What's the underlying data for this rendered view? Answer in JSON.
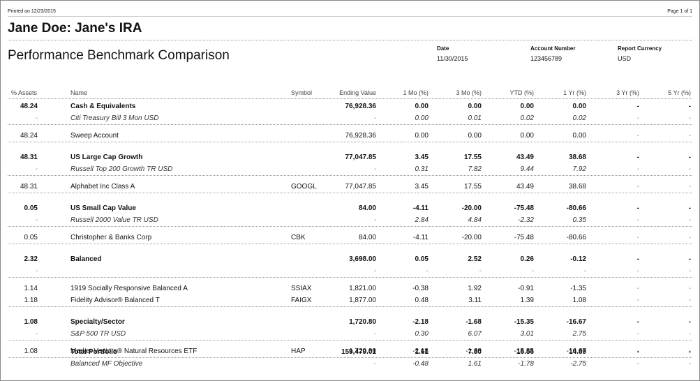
{
  "header": {
    "printed": "Printed on 12/23/2015",
    "page": "Page 1 of 1",
    "title": "Jane Doe: Jane's IRA",
    "subtitle": "Performance Benchmark Comparison",
    "fields": [
      {
        "label": "Date",
        "value": "11/30/2015"
      },
      {
        "label": "Account Number",
        "value": "123456789"
      },
      {
        "label": "Report Currency",
        "value": "USD"
      }
    ]
  },
  "table": {
    "columns": [
      "% Assets",
      "Name",
      "Symbol",
      "Ending Value",
      "1 Mo (%)",
      "3 Mo (%)",
      "YTD (%)",
      "1 Yr (%)",
      "3 Yr (%)",
      "5 Yr (%)"
    ],
    "groups": [
      {
        "summary": [
          "48.24",
          "Cash & Equivalents",
          null,
          "76,928.36",
          "0.00",
          "0.00",
          "0.00",
          "0.00",
          "-",
          "-"
        ],
        "benchmark": [
          "-",
          "Citi Treasury Bill 3 Mon USD",
          null,
          "-",
          "0.00",
          "0.01",
          "0.02",
          "0.02",
          "-",
          "-"
        ],
        "holdings": [
          [
            "48.24",
            "Sweep Account",
            null,
            "76,928.36",
            "0.00",
            "0.00",
            "0.00",
            "0.00",
            "-",
            "-"
          ]
        ]
      },
      {
        "summary": [
          "48.31",
          "US Large Cap Growth",
          null,
          "77,047.85",
          "3.45",
          "17.55",
          "43.49",
          "38.68",
          "-",
          "-"
        ],
        "benchmark": [
          "-",
          "Russell Top 200 Growth TR USD",
          null,
          "-",
          "0.31",
          "7.82",
          "9.44",
          "7.92",
          "-",
          "-"
        ],
        "holdings": [
          [
            "48.31",
            "Alphabet Inc Class A",
            "GOOGL",
            "77,047.85",
            "3.45",
            "17.55",
            "43.49",
            "38.68",
            "-",
            "-"
          ]
        ]
      },
      {
        "summary": [
          "0.05",
          "US Small Cap Value",
          null,
          "84.00",
          "-4.11",
          "-20.00",
          "-75.48",
          "-80.66",
          "-",
          "-"
        ],
        "benchmark": [
          "-",
          "Russell 2000 Value TR USD",
          null,
          "-",
          "2.84",
          "4.84",
          "-2.32",
          "0.35",
          "-",
          "-"
        ],
        "holdings": [
          [
            "0.05",
            "Christopher & Banks Corp",
            "CBK",
            "84.00",
            "-4.11",
            "-20.00",
            "-75.48",
            "-80.66",
            "-",
            "-"
          ]
        ]
      },
      {
        "summary": [
          "2.32",
          "Balanced",
          null,
          "3,698.00",
          "0.05",
          "2.52",
          "0.26",
          "-0.12",
          "-",
          "-"
        ],
        "benchmark": [
          "-",
          null,
          null,
          "-",
          "-",
          "-",
          "-",
          "-",
          "-",
          "-"
        ],
        "holdings": [
          [
            "1.14",
            "1919 Socially Responsive Balanced A",
            "SSIAX",
            "1,821.00",
            "-0.38",
            "1.92",
            "-0.91",
            "-1.35",
            "-",
            "-"
          ],
          [
            "1.18",
            "Fidelity Advisor® Balanced T",
            "FAIGX",
            "1,877.00",
            "0.48",
            "3.11",
            "1.39",
            "1.08",
            "-",
            "-"
          ]
        ]
      },
      {
        "summary": [
          "1.08",
          "Specialty/Sector",
          null,
          "1,720.80",
          "-2.18",
          "-1.68",
          "-15.35",
          "-16.67",
          "-",
          "-"
        ],
        "benchmark": [
          "-",
          "S&P 500 TR USD",
          null,
          "-",
          "0.30",
          "6.07",
          "3.01",
          "2.75",
          "-",
          "-"
        ],
        "holdings": [
          [
            "1.08",
            "Market Vectors® Natural Resources ETF",
            "HAP",
            "1,720.80",
            "-2.18",
            "-1.68",
            "-15.35",
            "-16.67",
            "-",
            "-"
          ]
        ]
      }
    ],
    "total": {
      "summary": [
        null,
        "Total Portfolio",
        null,
        "159,479.01",
        "1.61",
        "7.80",
        "16.56",
        "14.89",
        "-",
        "-"
      ],
      "benchmark": [
        null,
        "Balanced MF Objective",
        null,
        "-",
        "-0.48",
        "1.61",
        "-1.78",
        "-2.75",
        "-",
        "-"
      ]
    }
  }
}
